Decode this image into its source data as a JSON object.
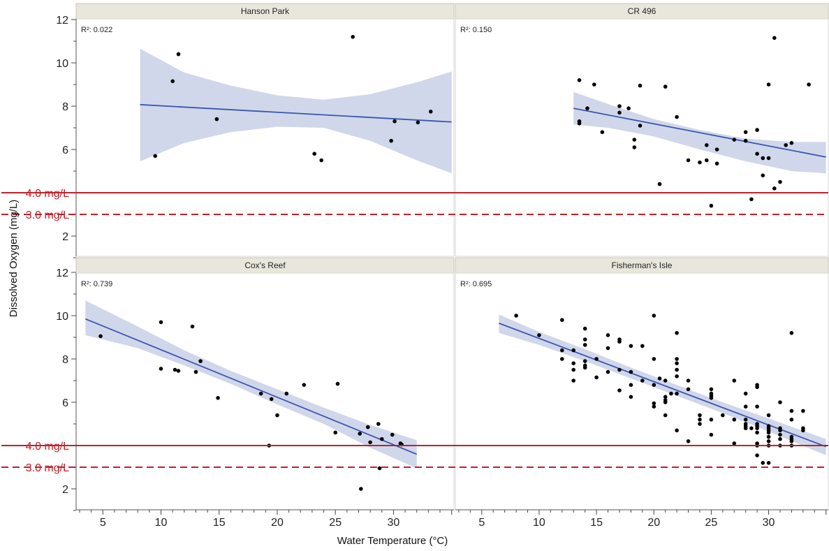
{
  "chart_data": {
    "type": "scatter",
    "xlabel": "Water Temperature (°C)",
    "ylabel": "Dissolved Oxygen (mg/L)",
    "ylim": [
      1.0,
      12.4
    ],
    "xlim": [
      2.7,
      35.2
    ],
    "y_ticks": [
      "2",
      "4",
      "6",
      "8",
      "10",
      "12"
    ],
    "x_ticks": [
      "5",
      "10",
      "15",
      "20",
      "25",
      "30"
    ],
    "grid": false,
    "reference_lines": [
      {
        "value": 4.0,
        "label": "4.0 mg/L",
        "style": "solid",
        "color": "#c0202a"
      },
      {
        "value": 3.0,
        "label": "3.0 mg/L",
        "style": "dashed",
        "color": "#c0202a"
      }
    ],
    "colors": {
      "points": "#000000",
      "fit": "#3b55b0",
      "band": "#c8d0e6",
      "strip": "#e9e7dc"
    },
    "panels": [
      {
        "name": "Hanson Park",
        "r2_label": "R²: 0.022",
        "fit": {
          "x0": 8.2,
          "y0": 8.07,
          "x1": 35.0,
          "y1": 7.27
        },
        "band": [
          [
            8.2,
            5.45,
            10.65
          ],
          [
            12.0,
            6.3,
            9.55
          ],
          [
            16.0,
            6.8,
            8.95
          ],
          [
            20.0,
            7.05,
            8.5
          ],
          [
            24.0,
            7.0,
            8.3
          ],
          [
            28.0,
            6.4,
            8.55
          ],
          [
            32.0,
            5.5,
            9.1
          ],
          [
            35.0,
            4.9,
            9.6
          ]
        ],
        "points": [
          [
            9.5,
            5.7
          ],
          [
            11.0,
            9.15
          ],
          [
            11.5,
            10.4
          ],
          [
            14.8,
            7.4
          ],
          [
            23.2,
            5.8
          ],
          [
            23.8,
            5.5
          ],
          [
            26.5,
            11.2
          ],
          [
            29.8,
            6.4
          ],
          [
            30.1,
            7.3
          ],
          [
            32.1,
            7.25
          ],
          [
            33.2,
            7.75
          ]
        ]
      },
      {
        "name": "CR 496",
        "r2_label": "R²: 0.150",
        "fit": {
          "x0": 13.0,
          "y0": 7.9,
          "x1": 35.0,
          "y1": 5.65
        },
        "band": [
          [
            13.0,
            7.15,
            8.65
          ],
          [
            16.0,
            7.0,
            8.1
          ],
          [
            20.0,
            6.6,
            7.4
          ],
          [
            24.0,
            6.0,
            6.9
          ],
          [
            28.0,
            5.45,
            6.5
          ],
          [
            32.0,
            5.0,
            6.35
          ],
          [
            35.0,
            4.9,
            6.35
          ]
        ],
        "points": [
          [
            13.5,
            9.2
          ],
          [
            13.5,
            7.3
          ],
          [
            13.5,
            7.2
          ],
          [
            14.2,
            7.9
          ],
          [
            14.8,
            9.0
          ],
          [
            15.5,
            6.8
          ],
          [
            17.0,
            8.0
          ],
          [
            17.0,
            7.7
          ],
          [
            17.8,
            7.9
          ],
          [
            18.3,
            6.45
          ],
          [
            18.3,
            6.1
          ],
          [
            18.8,
            8.95
          ],
          [
            18.8,
            7.1
          ],
          [
            20.5,
            4.4
          ],
          [
            21.0,
            8.9
          ],
          [
            22.0,
            7.5
          ],
          [
            23.0,
            5.5
          ],
          [
            24.0,
            5.4
          ],
          [
            24.6,
            6.2
          ],
          [
            24.6,
            5.5
          ],
          [
            25.0,
            3.4
          ],
          [
            25.5,
            5.35
          ],
          [
            25.5,
            6.0
          ],
          [
            27.0,
            6.45
          ],
          [
            28.0,
            6.4
          ],
          [
            28.0,
            6.8
          ],
          [
            28.5,
            3.7
          ],
          [
            29.0,
            6.9
          ],
          [
            29.0,
            5.8
          ],
          [
            29.5,
            5.6
          ],
          [
            29.5,
            4.8
          ],
          [
            30.0,
            9.0
          ],
          [
            30.0,
            5.6
          ],
          [
            30.5,
            11.15
          ],
          [
            30.5,
            4.2
          ],
          [
            31.0,
            4.5
          ],
          [
            31.5,
            6.2
          ],
          [
            32.0,
            6.3
          ],
          [
            33.5,
            9.0
          ]
        ]
      },
      {
        "name": "Cox's Reef",
        "r2_label": "R²: 0.739",
        "fit": {
          "x0": 3.5,
          "y0": 9.85,
          "x1": 32.0,
          "y1": 3.6
        },
        "band": [
          [
            3.5,
            9.1,
            10.7
          ],
          [
            8.0,
            8.5,
            9.5
          ],
          [
            12.0,
            7.7,
            8.4
          ],
          [
            16.0,
            6.85,
            7.45
          ],
          [
            20.0,
            5.9,
            6.6
          ],
          [
            24.0,
            5.0,
            5.75
          ],
          [
            28.0,
            3.9,
            4.95
          ],
          [
            32.0,
            2.95,
            4.25
          ]
        ],
        "points": [
          [
            4.8,
            9.05
          ],
          [
            10.0,
            9.7
          ],
          [
            10.0,
            7.55
          ],
          [
            11.2,
            7.5
          ],
          [
            11.5,
            7.45
          ],
          [
            12.7,
            9.5
          ],
          [
            13.0,
            7.4
          ],
          [
            13.4,
            7.9
          ],
          [
            14.9,
            6.2
          ],
          [
            18.6,
            6.4
          ],
          [
            19.3,
            4.0
          ],
          [
            19.5,
            6.15
          ],
          [
            20.0,
            5.4
          ],
          [
            20.8,
            6.4
          ],
          [
            22.3,
            6.8
          ],
          [
            25.0,
            4.6
          ],
          [
            25.2,
            6.85
          ],
          [
            27.1,
            4.55
          ],
          [
            27.2,
            2.0
          ],
          [
            27.8,
            4.85
          ],
          [
            28.0,
            4.15
          ],
          [
            28.7,
            5.0
          ],
          [
            28.8,
            2.95
          ],
          [
            29.0,
            4.3
          ],
          [
            29.9,
            4.5
          ],
          [
            30.6,
            4.1
          ],
          [
            30.7,
            4.05
          ]
        ]
      },
      {
        "name": "Fisherman's Isle",
        "r2_label": "R²: 0.695",
        "fit": {
          "x0": 6.5,
          "y0": 9.65,
          "x1": 35.0,
          "y1": 3.95
        },
        "band": [
          [
            6.5,
            9.2,
            10.05
          ],
          [
            10.0,
            8.65,
            9.25
          ],
          [
            14.0,
            7.9,
            8.45
          ],
          [
            18.0,
            7.1,
            7.6
          ],
          [
            22.0,
            6.3,
            6.8
          ],
          [
            26.0,
            5.5,
            6.0
          ],
          [
            30.0,
            4.65,
            5.25
          ],
          [
            35.0,
            3.55,
            4.3
          ]
        ],
        "points": [
          [
            8.0,
            10.0
          ],
          [
            10.0,
            9.1
          ],
          [
            12.0,
            9.8
          ],
          [
            12.0,
            8.4
          ],
          [
            12.0,
            8.0
          ],
          [
            13.0,
            8.4
          ],
          [
            13.0,
            7.8
          ],
          [
            13.0,
            7.5
          ],
          [
            13.0,
            7.0
          ],
          [
            14.0,
            9.4
          ],
          [
            14.0,
            8.9
          ],
          [
            14.0,
            8.65
          ],
          [
            14.0,
            7.9
          ],
          [
            14.0,
            7.7
          ],
          [
            14.0,
            7.6
          ],
          [
            15.0,
            8.0
          ],
          [
            15.0,
            7.15
          ],
          [
            16.0,
            9.1
          ],
          [
            16.0,
            8.5
          ],
          [
            16.0,
            7.4
          ],
          [
            17.0,
            8.9
          ],
          [
            17.0,
            8.8
          ],
          [
            17.0,
            7.5
          ],
          [
            17.0,
            6.55
          ],
          [
            18.0,
            8.6
          ],
          [
            18.0,
            7.4
          ],
          [
            18.0,
            6.8
          ],
          [
            18.0,
            6.25
          ],
          [
            19.0,
            8.6
          ],
          [
            19.0,
            7.0
          ],
          [
            20.0,
            10.0
          ],
          [
            20.0,
            8.0
          ],
          [
            20.0,
            6.8
          ],
          [
            20.0,
            5.95
          ],
          [
            20.0,
            5.8
          ],
          [
            20.5,
            7.1
          ],
          [
            21.0,
            7.0
          ],
          [
            21.0,
            6.25
          ],
          [
            21.0,
            6.1
          ],
          [
            21.0,
            6.0
          ],
          [
            21.0,
            5.4
          ],
          [
            21.5,
            6.4
          ],
          [
            22.0,
            9.2
          ],
          [
            22.0,
            8.0
          ],
          [
            22.0,
            7.8
          ],
          [
            22.0,
            7.5
          ],
          [
            22.0,
            7.2
          ],
          [
            22.0,
            6.4
          ],
          [
            22.0,
            4.7
          ],
          [
            23.0,
            7.0
          ],
          [
            23.0,
            6.6
          ],
          [
            23.0,
            4.2
          ],
          [
            24.0,
            5.4
          ],
          [
            24.0,
            5.2
          ],
          [
            24.0,
            5.0
          ],
          [
            25.0,
            6.6
          ],
          [
            25.0,
            6.4
          ],
          [
            25.0,
            6.3
          ],
          [
            25.0,
            6.2
          ],
          [
            25.0,
            5.2
          ],
          [
            25.0,
            4.5
          ],
          [
            26.0,
            5.4
          ],
          [
            27.0,
            7.0
          ],
          [
            27.0,
            5.2
          ],
          [
            27.0,
            4.1
          ],
          [
            28.0,
            6.4
          ],
          [
            28.0,
            5.8
          ],
          [
            28.0,
            5.2
          ],
          [
            28.0,
            5.0
          ],
          [
            28.0,
            4.9
          ],
          [
            28.0,
            4.8
          ],
          [
            28.5,
            4.8
          ],
          [
            29.0,
            6.8
          ],
          [
            29.0,
            6.7
          ],
          [
            29.0,
            5.8
          ],
          [
            29.0,
            5.0
          ],
          [
            29.0,
            4.9
          ],
          [
            29.0,
            4.8
          ],
          [
            29.0,
            4.6
          ],
          [
            29.0,
            4.1
          ],
          [
            29.0,
            4.0
          ],
          [
            29.0,
            3.55
          ],
          [
            29.5,
            3.2
          ],
          [
            30.0,
            5.4
          ],
          [
            30.0,
            4.9
          ],
          [
            30.0,
            4.8
          ],
          [
            30.0,
            4.7
          ],
          [
            30.0,
            4.6
          ],
          [
            30.0,
            4.4
          ],
          [
            30.0,
            4.2
          ],
          [
            30.0,
            4.0
          ],
          [
            30.0,
            3.2
          ],
          [
            31.0,
            6.0
          ],
          [
            31.0,
            4.8
          ],
          [
            31.0,
            4.7
          ],
          [
            31.0,
            4.5
          ],
          [
            31.0,
            4.3
          ],
          [
            31.0,
            4.0
          ],
          [
            32.0,
            9.2
          ],
          [
            32.0,
            5.6
          ],
          [
            32.0,
            5.2
          ],
          [
            32.0,
            4.4
          ],
          [
            32.0,
            4.3
          ],
          [
            32.0,
            4.2
          ],
          [
            32.0,
            4.0
          ],
          [
            33.0,
            5.6
          ],
          [
            33.0,
            4.8
          ],
          [
            33.0,
            4.7
          ]
        ]
      }
    ]
  }
}
